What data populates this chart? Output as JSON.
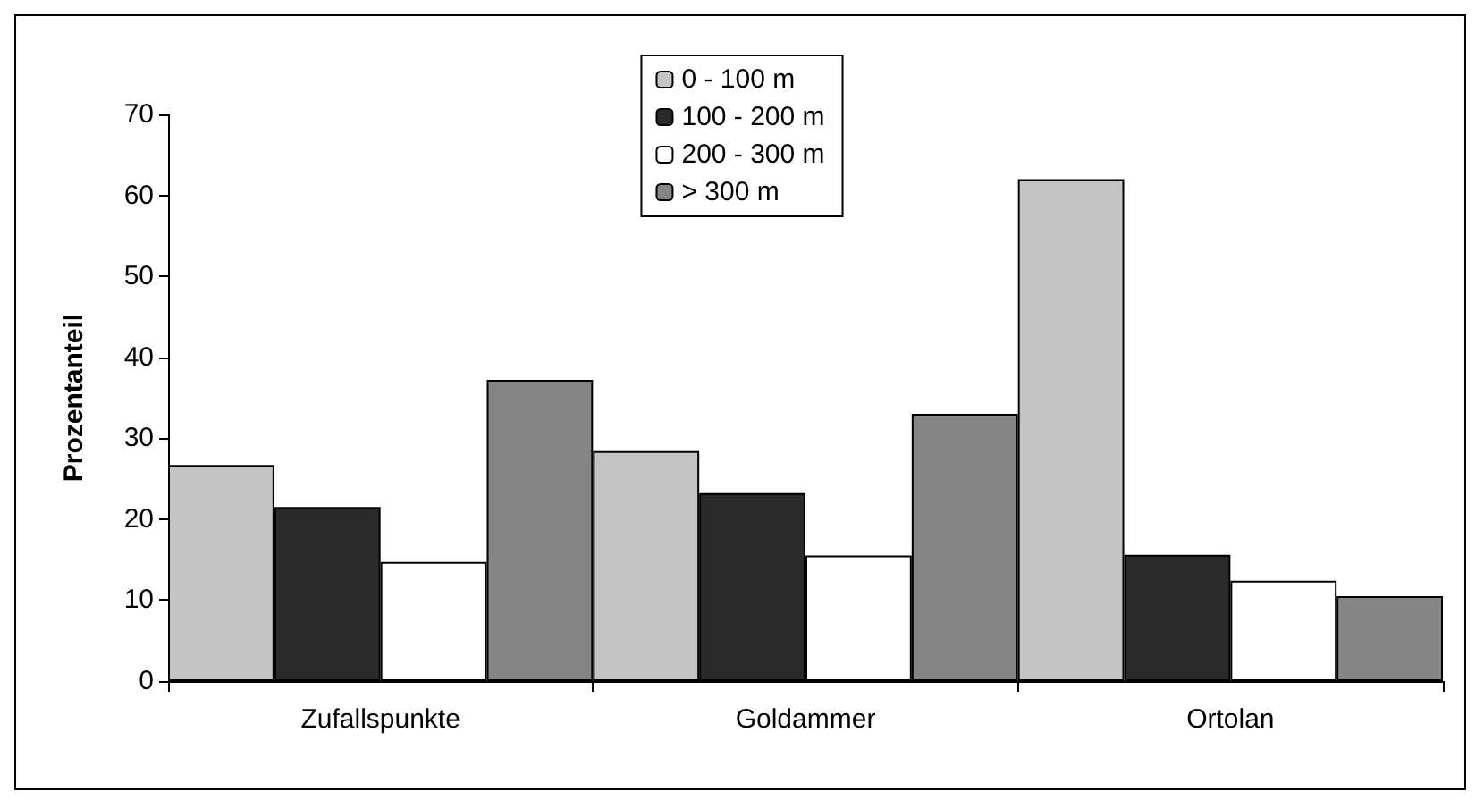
{
  "chart_data": {
    "type": "bar",
    "ylabel": "Prozentanteil",
    "categories": [
      "Zufallspunkte",
      "Goldammer",
      "Ortolan"
    ],
    "series": [
      {
        "name": "0 - 100 m",
        "color": "#c4c4c4",
        "values": [
          26.7,
          28.4,
          62
        ]
      },
      {
        "name": "100 - 200 m",
        "color": "#2a2a2a",
        "values": [
          21.5,
          23.2,
          15.6
        ]
      },
      {
        "name": "200 - 300 m",
        "color": "#ffffff",
        "values": [
          14.7,
          15.5,
          12.4
        ]
      },
      {
        "name": "> 300 m",
        "color": "#858585",
        "values": [
          37.2,
          33,
          10.5
        ]
      }
    ],
    "ylim": [
      0,
      70
    ],
    "yticks": [
      0,
      10,
      20,
      30,
      40,
      50,
      60,
      70
    ],
    "grid": false,
    "legend": "top"
  }
}
